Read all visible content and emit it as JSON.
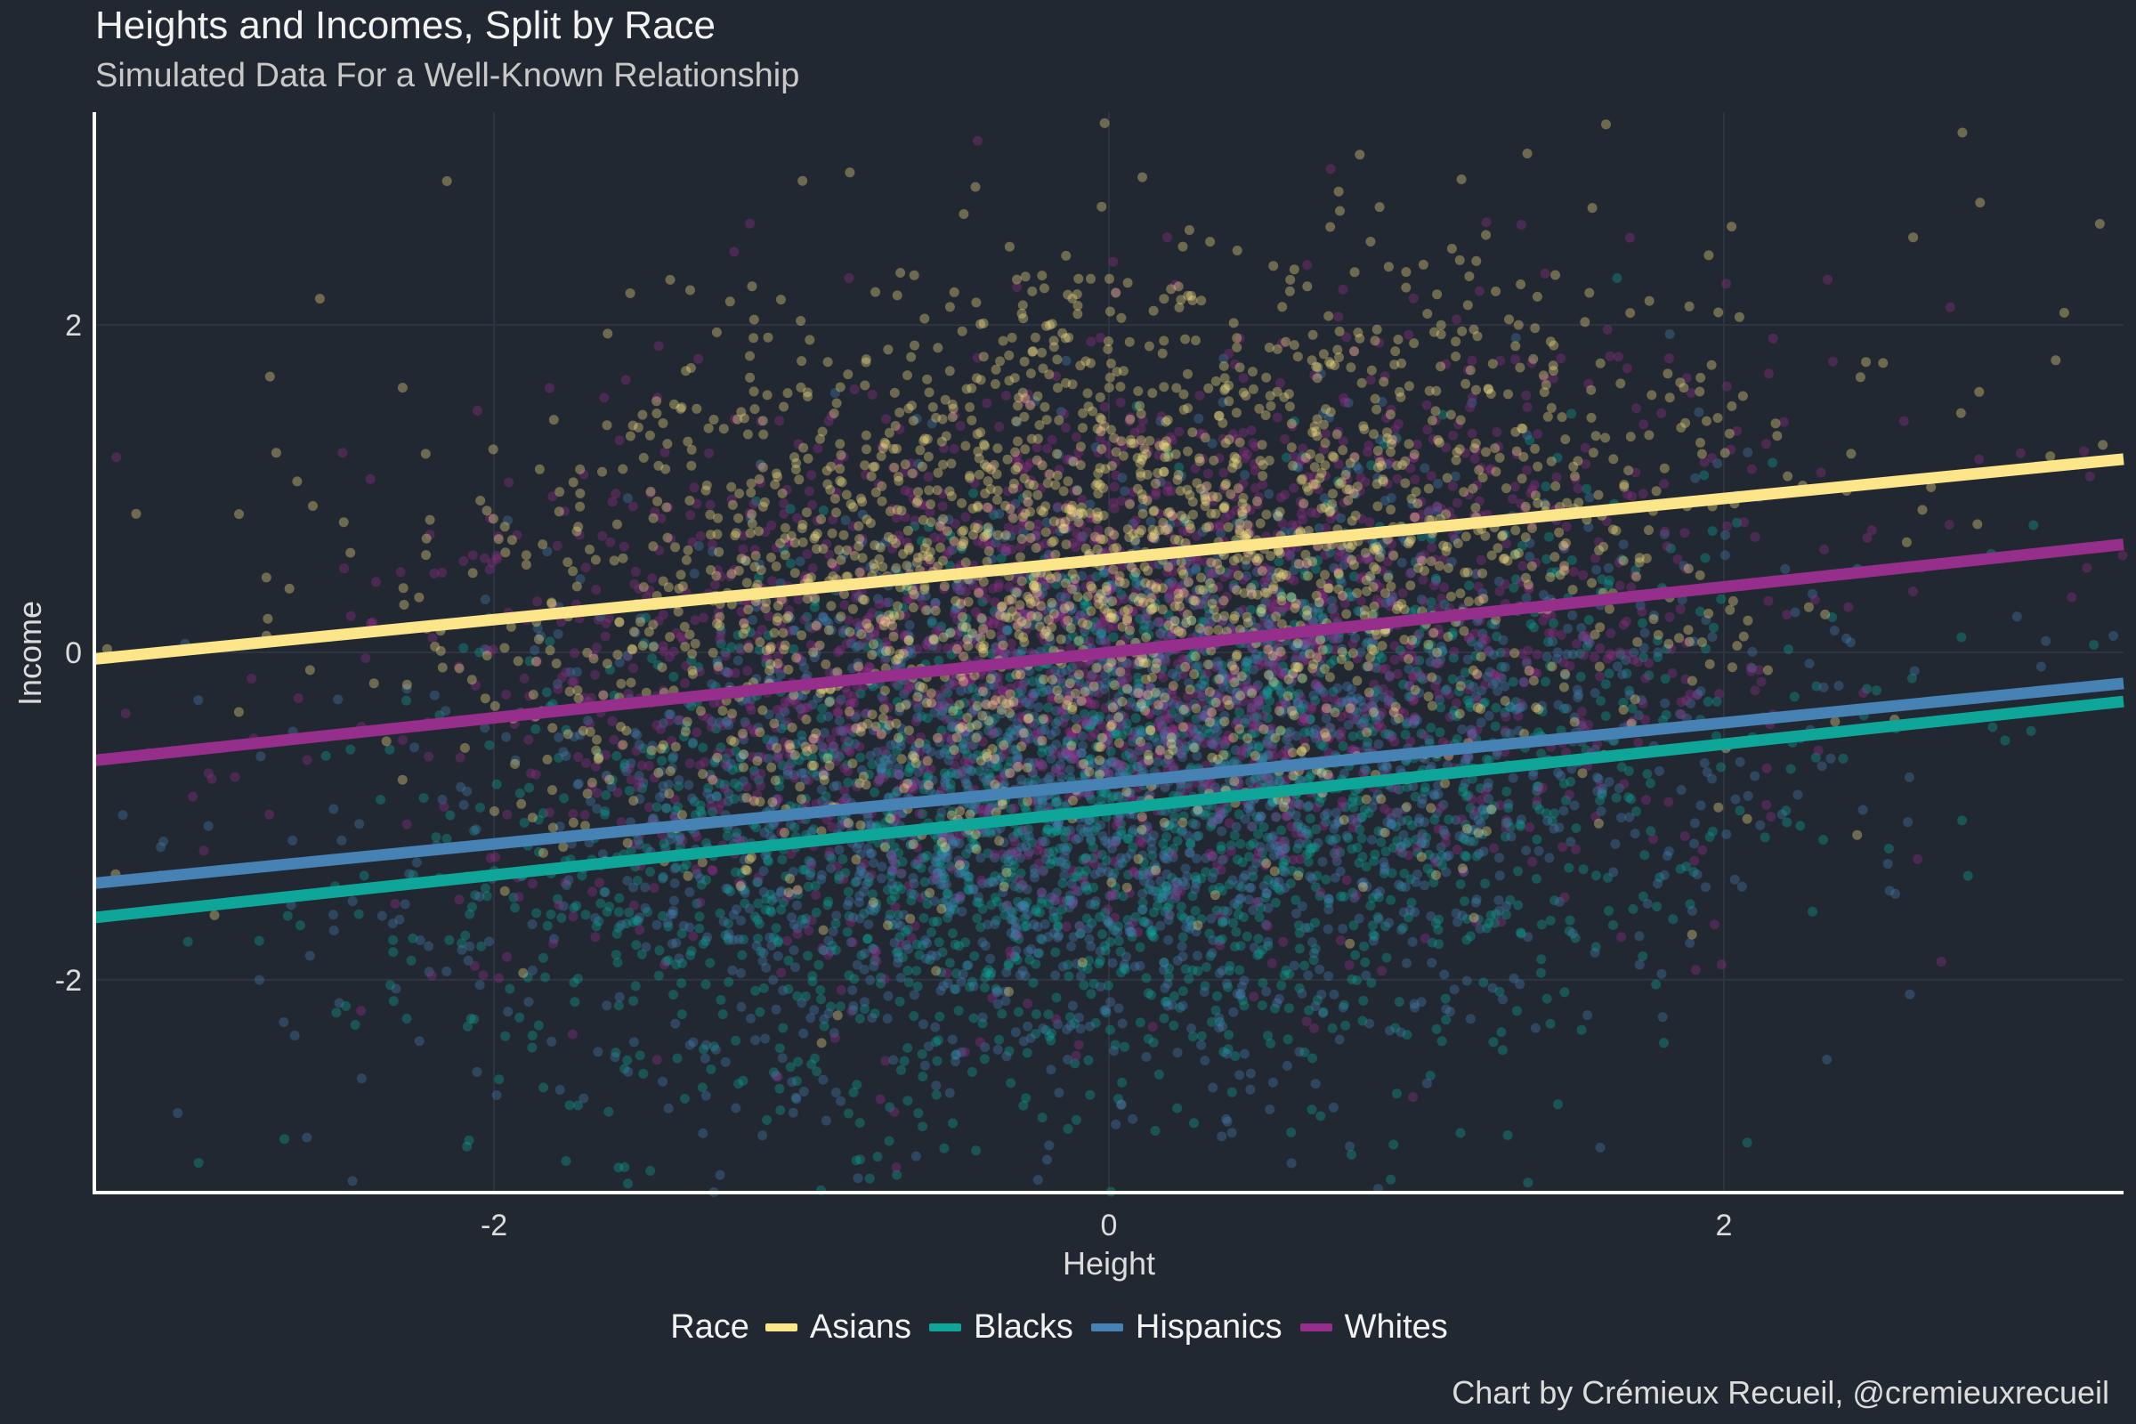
{
  "chart": {
    "title": "Heights and Incomes, Split by Race",
    "subtitle": "Simulated Data For a Well-Known Relationship",
    "caption": "Chart by Crémieux Recueil, @cremieuxrecueil",
    "legend_title": "Race"
  },
  "colors": {
    "background": "#222831",
    "grid": "#2e3540",
    "axis": "#ffffff",
    "text": "#f2f2f2"
  },
  "chart_data": {
    "type": "scatter",
    "title": "Heights and Incomes, Split by Race",
    "subtitle": "Simulated Data For a Well-Known Relationship",
    "xlabel": "Height",
    "ylabel": "Income",
    "xlim": [
      -3.3,
      3.3
    ],
    "ylim": [
      -3.3,
      3.3
    ],
    "x_ticks": [
      "-2",
      "0",
      "2"
    ],
    "y_ticks": [
      "2",
      "0",
      "-2"
    ],
    "grid": true,
    "legend_position": "bottom",
    "series": [
      {
        "name": "Asians",
        "color": "#fde68a",
        "x_mean": 0,
        "y_mean": 0.57,
        "y_sd": 0.85,
        "fit": {
          "slope": 0.185,
          "intercept": 0.57
        }
      },
      {
        "name": "Blacks",
        "color": "#0fa69a",
        "x_mean": 0,
        "y_mean": -0.98,
        "y_sd": 0.85,
        "fit": {
          "slope": 0.2,
          "intercept": -0.96
        }
      },
      {
        "name": "Hispanics",
        "color": "#4682b4",
        "x_mean": 0,
        "y_mean": -0.8,
        "y_sd": 0.85,
        "fit": {
          "slope": 0.185,
          "intercept": -0.8
        }
      },
      {
        "name": "Whites",
        "color": "#962f8c",
        "x_mean": 0,
        "y_mean": 0.0,
        "y_sd": 0.85,
        "fit": {
          "slope": 0.2,
          "intercept": 0.0
        }
      }
    ]
  }
}
